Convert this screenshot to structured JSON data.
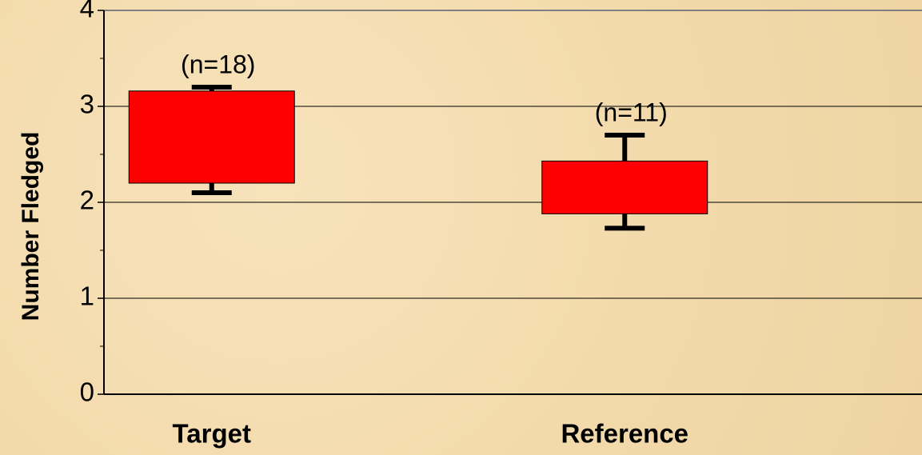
{
  "chart_data": {
    "type": "box",
    "y_label": "Number Fledged",
    "categories": [
      "Target",
      "Reference"
    ],
    "box_low": [
      2.2,
      1.88
    ],
    "box_high": [
      3.16,
      2.43
    ],
    "whisker_low": [
      2.1,
      1.73
    ],
    "whisker_high": [
      3.2,
      2.7
    ],
    "annotations": [
      "(n=18)",
      "(n=11)"
    ],
    "color": "#ff0000",
    "ylim": [
      0,
      4
    ],
    "yticks": [
      0,
      1,
      2,
      3,
      4
    ],
    "minor_yticks": [
      0.5,
      1.5,
      2.5,
      3.5
    ],
    "grid": true
  }
}
